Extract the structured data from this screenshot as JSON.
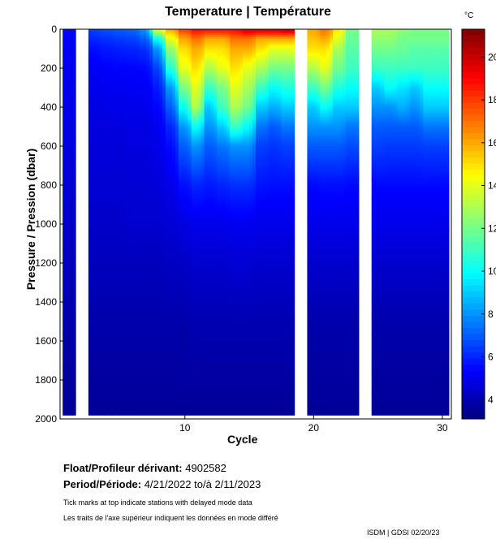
{
  "chart_data": {
    "type": "heatmap",
    "title": "Temperature | Température",
    "xlabel": "Cycle",
    "ylabel": "Pressure / Pression (dbar)",
    "colorbar_label": "°C",
    "xlim": [
      0.3,
      30.7
    ],
    "ylim": [
      2000,
      0
    ],
    "clim": [
      3.1,
      21.3
    ],
    "xticks": [
      10,
      20,
      30
    ],
    "yticks": [
      0,
      200,
      400,
      600,
      800,
      1000,
      1200,
      1400,
      1600,
      1800,
      2000
    ],
    "cticks": [
      4,
      6,
      8,
      10,
      12,
      14,
      16,
      18,
      20
    ],
    "depths": [
      0,
      50,
      100,
      200,
      300,
      400,
      500,
      600,
      800,
      1000,
      1200,
      1500,
      2000
    ],
    "profiles": [
      {
        "cycle": 1,
        "t": [
          5.5,
          5.3,
          5.2,
          5.1,
          5.0,
          5.0,
          4.9,
          4.8,
          4.6,
          4.4,
          4.2,
          3.9,
          3.5
        ]
      },
      {
        "cycle": 3,
        "t": [
          6.5,
          6.0,
          5.6,
          5.2,
          5.0,
          4.9,
          4.8,
          4.7,
          4.6,
          4.4,
          4.2,
          3.9,
          3.5
        ]
      },
      {
        "cycle": 4,
        "t": [
          6.8,
          6.2,
          5.8,
          5.3,
          5.1,
          4.9,
          4.8,
          4.7,
          4.6,
          4.4,
          4.2,
          3.9,
          3.5
        ]
      },
      {
        "cycle": 5,
        "t": [
          7.0,
          6.4,
          5.9,
          5.4,
          5.1,
          5.0,
          4.8,
          4.7,
          4.6,
          4.4,
          4.2,
          3.9,
          3.5
        ]
      },
      {
        "cycle": 6,
        "t": [
          7.2,
          6.5,
          6.0,
          5.4,
          5.2,
          5.0,
          4.9,
          4.8,
          4.6,
          4.5,
          4.2,
          3.9,
          3.5
        ]
      },
      {
        "cycle": 7,
        "t": [
          8.0,
          7.0,
          6.2,
          5.5,
          5.2,
          5.0,
          4.9,
          4.8,
          4.6,
          4.5,
          4.2,
          3.9,
          3.5
        ]
      },
      {
        "cycle": 8,
        "t": [
          14,
          10,
          8,
          6.5,
          5.8,
          5.4,
          5.1,
          5.0,
          4.7,
          4.5,
          4.2,
          3.9,
          3.5
        ]
      },
      {
        "cycle": 9,
        "t": [
          16,
          14,
          12.5,
          10.5,
          8,
          7,
          6,
          5.5,
          5,
          4.6,
          4.3,
          3.9,
          3.5
        ]
      },
      {
        "cycle": 10,
        "t": [
          18,
          16,
          15,
          14,
          12,
          10,
          8,
          7,
          5.6,
          4.8,
          4.4,
          3.9,
          3.5
        ]
      },
      {
        "cycle": 11,
        "t": [
          19,
          17,
          16,
          15,
          14,
          13,
          10,
          8,
          6,
          5,
          4.5,
          4,
          3.5
        ]
      },
      {
        "cycle": 12,
        "t": [
          19,
          16,
          15,
          13,
          11,
          9,
          8,
          7,
          5.8,
          5,
          4.5,
          4,
          3.5
        ]
      },
      {
        "cycle": 13,
        "t": [
          19,
          16,
          15,
          14,
          12,
          11,
          9,
          7.5,
          6,
          5,
          4.5,
          4,
          3.5
        ]
      },
      {
        "cycle": 14,
        "t": [
          19,
          17,
          16,
          15,
          14,
          13,
          11,
          8,
          6.2,
          5.1,
          4.6,
          4,
          3.5
        ]
      },
      {
        "cycle": 15,
        "t": [
          20,
          17,
          16,
          14,
          13,
          12,
          10,
          8,
          6.2,
          5.1,
          4.6,
          4,
          3.5
        ]
      },
      {
        "cycle": 16,
        "t": [
          20,
          16,
          15,
          13,
          11,
          9,
          7.5,
          6.5,
          5.7,
          5,
          4.5,
          4,
          3.5
        ]
      },
      {
        "cycle": 17,
        "t": [
          20,
          16,
          14,
          12,
          10,
          8.5,
          7,
          6.3,
          5.6,
          5,
          4.5,
          4,
          3.5
        ]
      },
      {
        "cycle": 18,
        "t": [
          20.5,
          16,
          14,
          12,
          10.5,
          9,
          7.5,
          6.5,
          5.6,
          5,
          4.5,
          4,
          3.5
        ]
      },
      {
        "cycle": 20,
        "t": [
          16,
          15.5,
          15,
          13,
          11,
          9,
          8,
          7,
          5.5,
          5,
          4.5,
          3.9,
          3.5
        ]
      },
      {
        "cycle": 21,
        "t": [
          17,
          16,
          15,
          14,
          12,
          10,
          8,
          7,
          5.6,
          5,
          4.5,
          3.9,
          3.5
        ]
      },
      {
        "cycle": 22,
        "t": [
          15,
          14,
          13,
          12,
          10.5,
          9,
          8,
          7,
          5.6,
          5,
          4.5,
          3.9,
          3.5
        ]
      },
      {
        "cycle": 23,
        "t": [
          12,
          11.8,
          11.5,
          11,
          10,
          9,
          7.5,
          6.7,
          5.5,
          5,
          4.5,
          3.9,
          3.5
        ]
      },
      {
        "cycle": 25,
        "t": [
          13,
          12.5,
          12,
          11,
          9,
          8,
          7,
          6.5,
          5.5,
          5,
          4.5,
          3.9,
          3.5
        ]
      },
      {
        "cycle": 26,
        "t": [
          13,
          12.5,
          12,
          11,
          10,
          8,
          7,
          6.4,
          5.5,
          5,
          4.5,
          3.9,
          3.5
        ]
      },
      {
        "cycle": 27,
        "t": [
          12.5,
          12,
          11.8,
          11,
          9.5,
          8.5,
          7,
          6.4,
          5.5,
          5,
          4.5,
          3.9,
          3.5
        ]
      },
      {
        "cycle": 28,
        "t": [
          12,
          12,
          11.5,
          11,
          9,
          8,
          7,
          6.4,
          5.5,
          5,
          4.5,
          3.9,
          3.5
        ]
      },
      {
        "cycle": 29,
        "t": [
          12,
          12,
          11.5,
          11,
          10,
          9,
          7.5,
          6.5,
          5.5,
          5,
          4.5,
          3.9,
          3.5
        ]
      },
      {
        "cycle": 30,
        "t": [
          12,
          12,
          11.5,
          11,
          10,
          9,
          7.5,
          6.5,
          5.5,
          5,
          4.5,
          3.9,
          3.5
        ]
      }
    ]
  },
  "info": {
    "float_label": "Float/Profileur dérivant:",
    "float_id": "4902582",
    "period_label": "Period/Période:",
    "period_value": "4/21/2022  to/à  2/11/2023",
    "note_en": "Tick marks at top indicate stations with delayed mode data",
    "note_fr": "Les traits de l'axe supérieur indiquent les données en mode différé",
    "credit": "ISDM | GDSI  02/20/23"
  }
}
